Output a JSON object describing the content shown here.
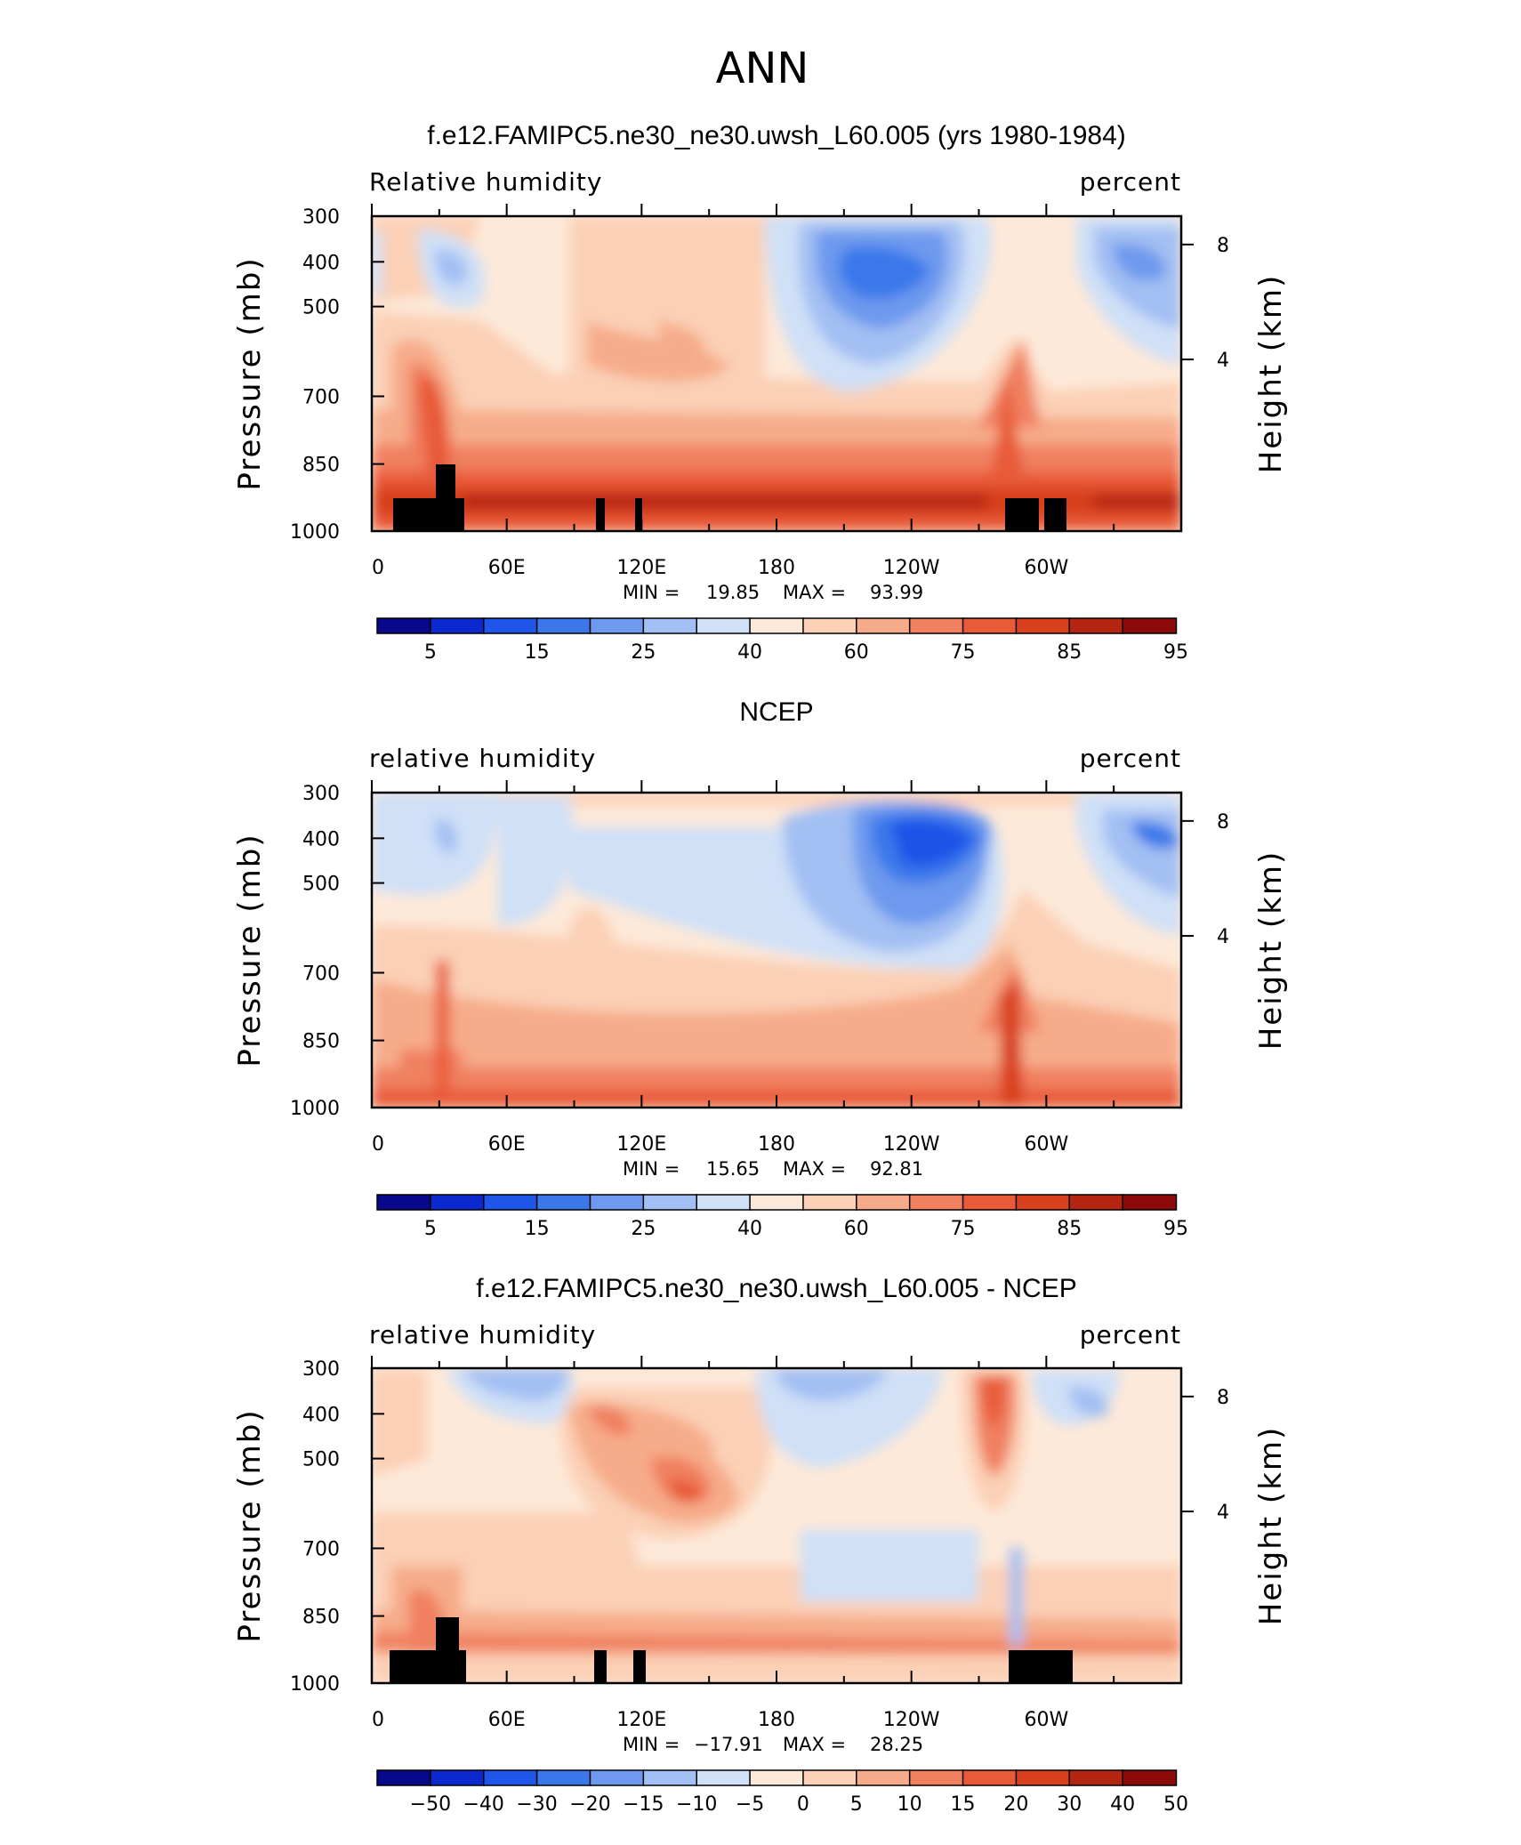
{
  "figure": {
    "title": "ANN"
  },
  "colorbar_colors": [
    "#08088a",
    "#0a2ad0",
    "#1f55e8",
    "#3a78ea",
    "#6d99ee",
    "#a3bff3",
    "#cfe0f7",
    "#fde9d9",
    "#fbd0b6",
    "#f6ac8a",
    "#f08060",
    "#e85a38",
    "#d8401e",
    "#b52612",
    "#8c0a0a"
  ],
  "chart_data": [
    {
      "type": "contour",
      "panel": "model",
      "title": "f.e12.FAMIPC5.ne30_ne30.uwsh_L60.005 (yrs 1980-1984)",
      "left_label": "Relative humidity",
      "right_label": "percent",
      "ylabel": "Pressure (mb)",
      "y2label": "Height (km)",
      "xticks": [
        "0",
        "60E",
        "120E",
        "180",
        "120W",
        "60W"
      ],
      "yticks": [
        "300",
        "400",
        "500",
        "700",
        "850",
        "1000"
      ],
      "y2ticks": [
        "8",
        "4"
      ],
      "ylim": [
        1000,
        300
      ],
      "min_label": "MIN =",
      "min_value": "19.85",
      "max_label": "MAX =",
      "max_value": "93.99",
      "colorbar_labels": [
        "5",
        "15",
        "25",
        "40",
        "60",
        "75",
        "85",
        "95"
      ],
      "topography": true
    },
    {
      "type": "contour",
      "panel": "obs",
      "title": "NCEP",
      "left_label": "relative humidity",
      "right_label": "percent",
      "ylabel": "Pressure (mb)",
      "y2label": "Height (km)",
      "xticks": [
        "0",
        "60E",
        "120E",
        "180",
        "120W",
        "60W"
      ],
      "yticks": [
        "300",
        "400",
        "500",
        "700",
        "850",
        "1000"
      ],
      "y2ticks": [
        "8",
        "4"
      ],
      "ylim": [
        1000,
        300
      ],
      "min_label": "MIN =",
      "min_value": "15.65",
      "max_label": "MAX =",
      "max_value": "92.81",
      "colorbar_labels": [
        "5",
        "15",
        "25",
        "40",
        "60",
        "75",
        "85",
        "95"
      ],
      "topography": false
    },
    {
      "type": "contour",
      "panel": "diff",
      "title": "f.e12.FAMIPC5.ne30_ne30.uwsh_L60.005 - NCEP",
      "left_label": "relative humidity",
      "right_label": "percent",
      "ylabel": "Pressure (mb)",
      "y2label": "Height (km)",
      "xticks": [
        "0",
        "60E",
        "120E",
        "180",
        "120W",
        "60W"
      ],
      "yticks": [
        "300",
        "400",
        "500",
        "700",
        "850",
        "1000"
      ],
      "y2ticks": [
        "8",
        "4"
      ],
      "ylim": [
        1000,
        300
      ],
      "min_label": "MIN =",
      "min_value": "−17.91",
      "max_label": "MAX =",
      "max_value": "28.25",
      "colorbar_labels": [
        "−50",
        "−40",
        "−30",
        "−20",
        "−15",
        "−10",
        "−5",
        "0",
        "5",
        "10",
        "15",
        "20",
        "30",
        "40",
        "50"
      ],
      "topography": true
    }
  ]
}
